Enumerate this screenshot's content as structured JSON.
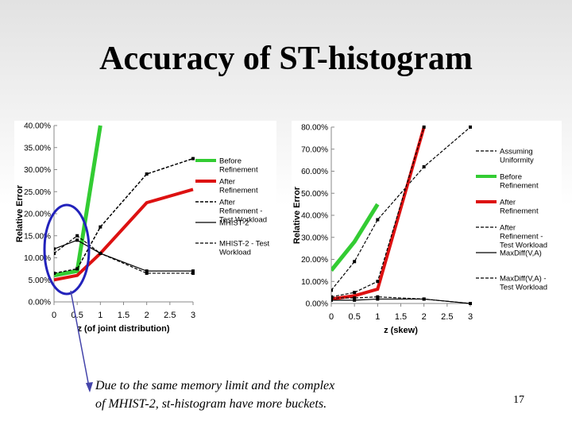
{
  "slide": {
    "title": "Accuracy of ST-histogram",
    "caption_line1": "Due to the same memory limit and the complex",
    "caption_line2": "of MHIST-2, st-histogram have more buckets.",
    "page_number": "17"
  },
  "chart_data": [
    {
      "type": "line",
      "xlabel": "z (of joint distribution)",
      "ylabel": "Relative Error",
      "x": [
        0,
        0.5,
        1,
        2,
        3
      ],
      "x_ticks": [
        "0",
        "0.5",
        "1",
        "1.5",
        "2",
        "2.5",
        "3"
      ],
      "y_ticks": [
        "0.00%",
        "5.00%",
        "10.00%",
        "15.00%",
        "20.00%",
        "25.00%",
        "30.00%",
        "35.00%",
        "40.00%"
      ],
      "xlim": [
        0,
        3
      ],
      "ylim": [
        0,
        40
      ],
      "legend_position": "right",
      "series": [
        {
          "name": "Before Refinement",
          "values": [
            6,
            7,
            40,
            null,
            null
          ],
          "color": "#33cc33",
          "style": "solid",
          "width": 5
        },
        {
          "name": "After Refinement",
          "values": [
            5,
            6,
            11,
            22.5,
            25.5
          ],
          "color": "#dd1111",
          "style": "solid",
          "width": 4
        },
        {
          "name": "After Refinement - Test Workload",
          "values": [
            6.5,
            7.5,
            17,
            29,
            32.5
          ],
          "color": "#000000",
          "style": "dashed",
          "width": 1.5
        },
        {
          "name": "MHIST-2",
          "values": [
            12,
            14,
            11,
            7,
            7
          ],
          "color": "#000000",
          "style": "solid",
          "width": 1.2
        },
        {
          "name": "MHIST-2 - Test Workload",
          "values": [
            11,
            15,
            11,
            6.5,
            6.5
          ],
          "color": "#000000",
          "style": "dashed",
          "width": 1.2
        }
      ]
    },
    {
      "type": "line",
      "xlabel": "z (skew)",
      "ylabel": "Relative Error",
      "x": [
        0,
        0.5,
        1,
        2,
        3
      ],
      "x_ticks": [
        "0",
        "0.5",
        "1",
        "1.5",
        "2",
        "2.5",
        "3"
      ],
      "y_ticks": [
        "0.00%",
        "10.00%",
        "20.00%",
        "30.00%",
        "40.00%",
        "50.00%",
        "60.00%",
        "70.00%",
        "80.00%"
      ],
      "xlim": [
        0,
        3
      ],
      "ylim": [
        0,
        80
      ],
      "legend_position": "right",
      "series": [
        {
          "name": "Assuming Uniformity",
          "values": [
            6,
            19,
            38,
            62,
            80
          ],
          "color": "#000000",
          "style": "dashed",
          "width": 1.2
        },
        {
          "name": "Before Refinement",
          "values": [
            15,
            28,
            45,
            null,
            null
          ],
          "color": "#33cc33",
          "style": "solid",
          "width": 5
        },
        {
          "name": "After Refinement",
          "values": [
            2,
            3.5,
            6.5,
            80,
            null
          ],
          "color": "#dd1111",
          "style": "solid",
          "width": 4
        },
        {
          "name": "After Refinement - Test Workload",
          "values": [
            3,
            5,
            10,
            80,
            null
          ],
          "color": "#000000",
          "style": "dashed",
          "width": 1.2
        },
        {
          "name": "MaxDiff(V,A)",
          "values": [
            1.5,
            1.5,
            2,
            2,
            0
          ],
          "color": "#000000",
          "style": "solid",
          "width": 1.2
        },
        {
          "name": "MaxDiff(V,A) - Test Workload",
          "values": [
            2.5,
            2.5,
            3,
            2,
            0
          ],
          "color": "#000000",
          "style": "dashed",
          "width": 1.2
        }
      ]
    }
  ]
}
